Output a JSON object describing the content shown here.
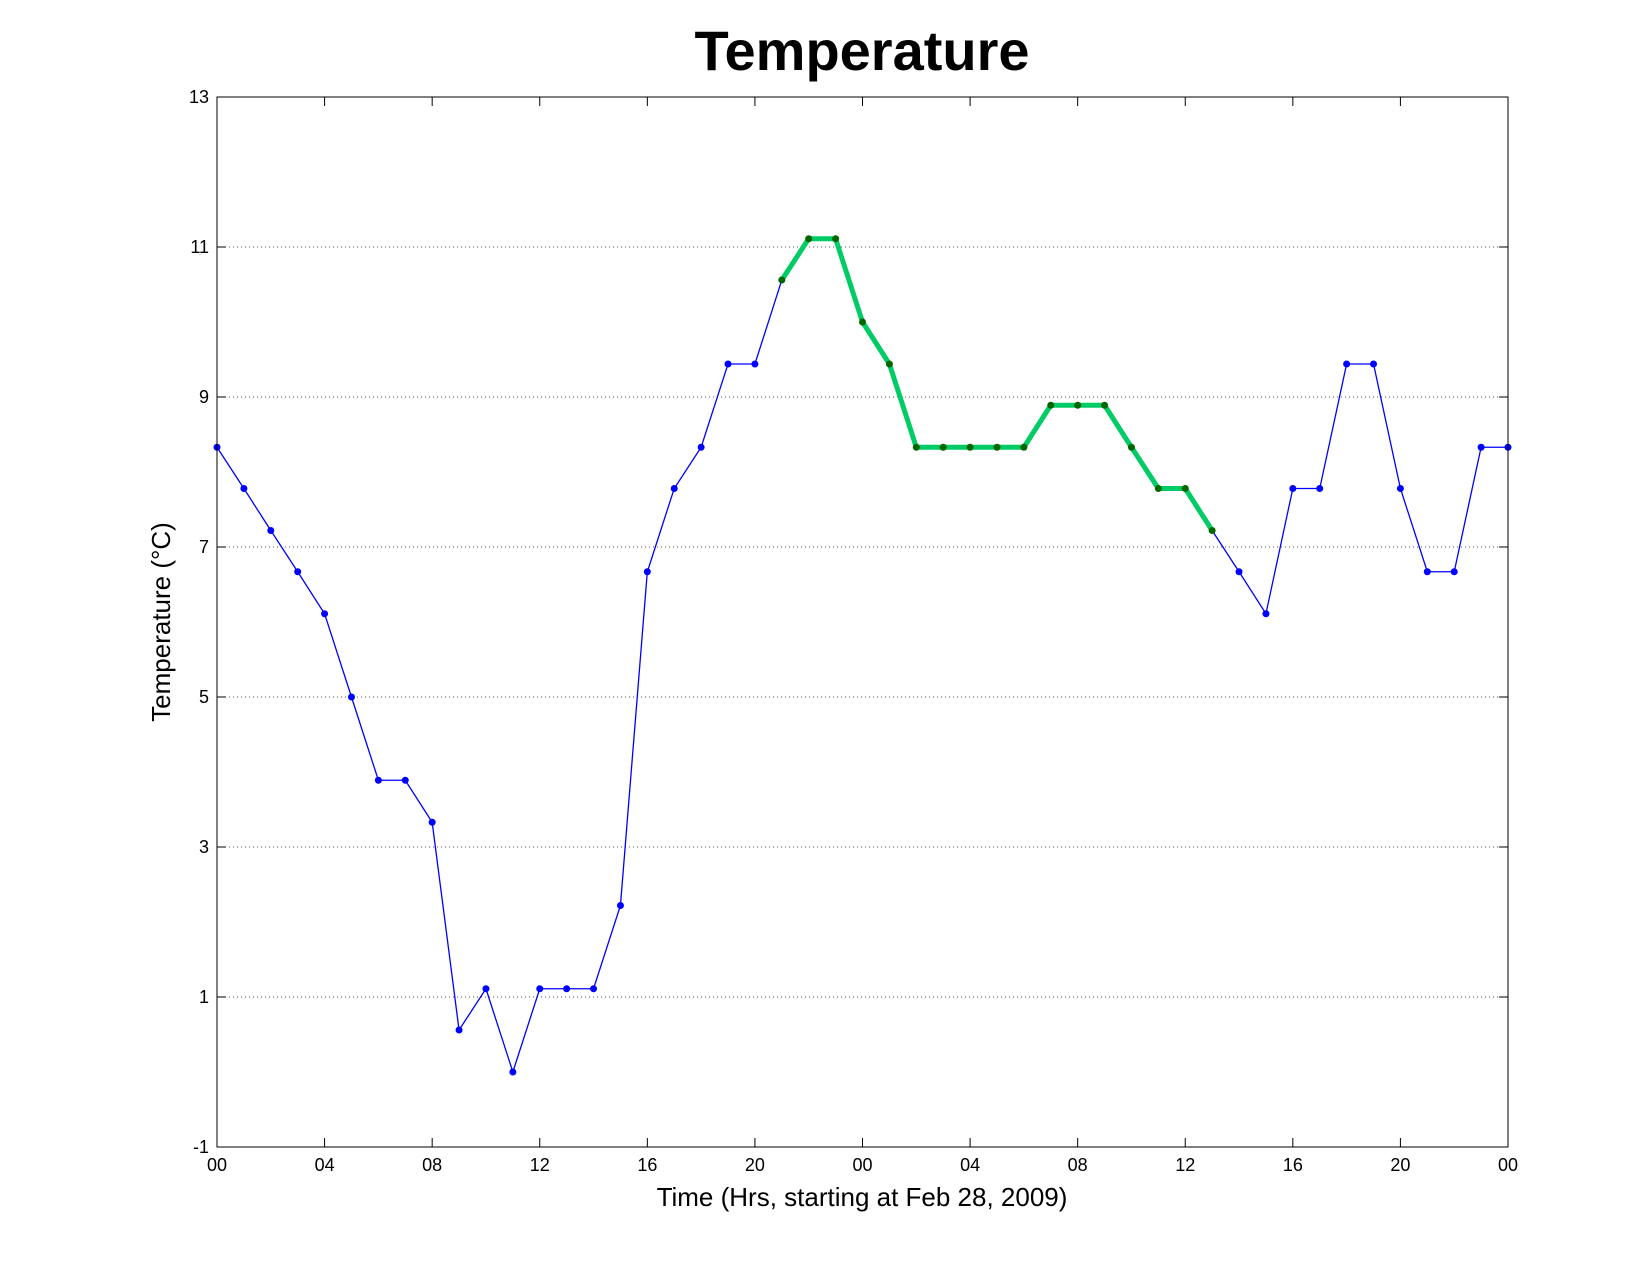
{
  "chart_data": {
    "type": "line",
    "title": "Temperature",
    "xlabel": "Time (Hrs, starting at Feb 28, 2009)",
    "ylabel": "Temperature (°C)",
    "x_range": [
      0,
      48
    ],
    "ylim": [
      -1,
      13
    ],
    "y_ticks": [
      -1,
      1,
      3,
      5,
      7,
      9,
      11,
      13
    ],
    "x_ticks": [
      {
        "x": 0,
        "label": "00"
      },
      {
        "x": 4,
        "label": "04"
      },
      {
        "x": 8,
        "label": "08"
      },
      {
        "x": 12,
        "label": "12"
      },
      {
        "x": 16,
        "label": "16"
      },
      {
        "x": 20,
        "label": "20"
      },
      {
        "x": 24,
        "label": "00"
      },
      {
        "x": 28,
        "label": "04"
      },
      {
        "x": 32,
        "label": "08"
      },
      {
        "x": 36,
        "label": "12"
      },
      {
        "x": 40,
        "label": "16"
      },
      {
        "x": 44,
        "label": "20"
      },
      {
        "x": 48,
        "label": "00"
      }
    ],
    "grid": {
      "horizontal": true,
      "vertical": false,
      "style": "dotted"
    },
    "colors": {
      "series": "#0000ff",
      "highlight": "#00cc66",
      "highlight_marker": "#006600",
      "axis": "#000000",
      "grid": "#555555"
    },
    "x": [
      0,
      1,
      2,
      3,
      4,
      5,
      6,
      7,
      8,
      9,
      10,
      11,
      12,
      13,
      14,
      15,
      16,
      17,
      18,
      19,
      20,
      21,
      22,
      23,
      24,
      25,
      26,
      27,
      28,
      29,
      30,
      31,
      32,
      33,
      34,
      35,
      36,
      37,
      38,
      39,
      40,
      41,
      42,
      43,
      44,
      45,
      46,
      47,
      48
    ],
    "series": [
      {
        "values": [
          8.33,
          7.78,
          7.22,
          6.67,
          6.11,
          5.0,
          3.89,
          3.89,
          3.33,
          0.56,
          1.11,
          0.0,
          1.11,
          1.11,
          1.11,
          2.22,
          6.67,
          7.78,
          8.33,
          9.44,
          9.44,
          10.56,
          11.11,
          11.11,
          10.0,
          9.44,
          8.33,
          8.33,
          8.33,
          8.33,
          8.33,
          8.89,
          8.89,
          8.89,
          8.33,
          7.78,
          7.78,
          7.22,
          6.67,
          6.11,
          7.78,
          7.78,
          9.44,
          9.44,
          7.78,
          6.67,
          6.67,
          8.33,
          8.33
        ],
        "highlight_range": [
          21,
          37
        ]
      }
    ]
  }
}
